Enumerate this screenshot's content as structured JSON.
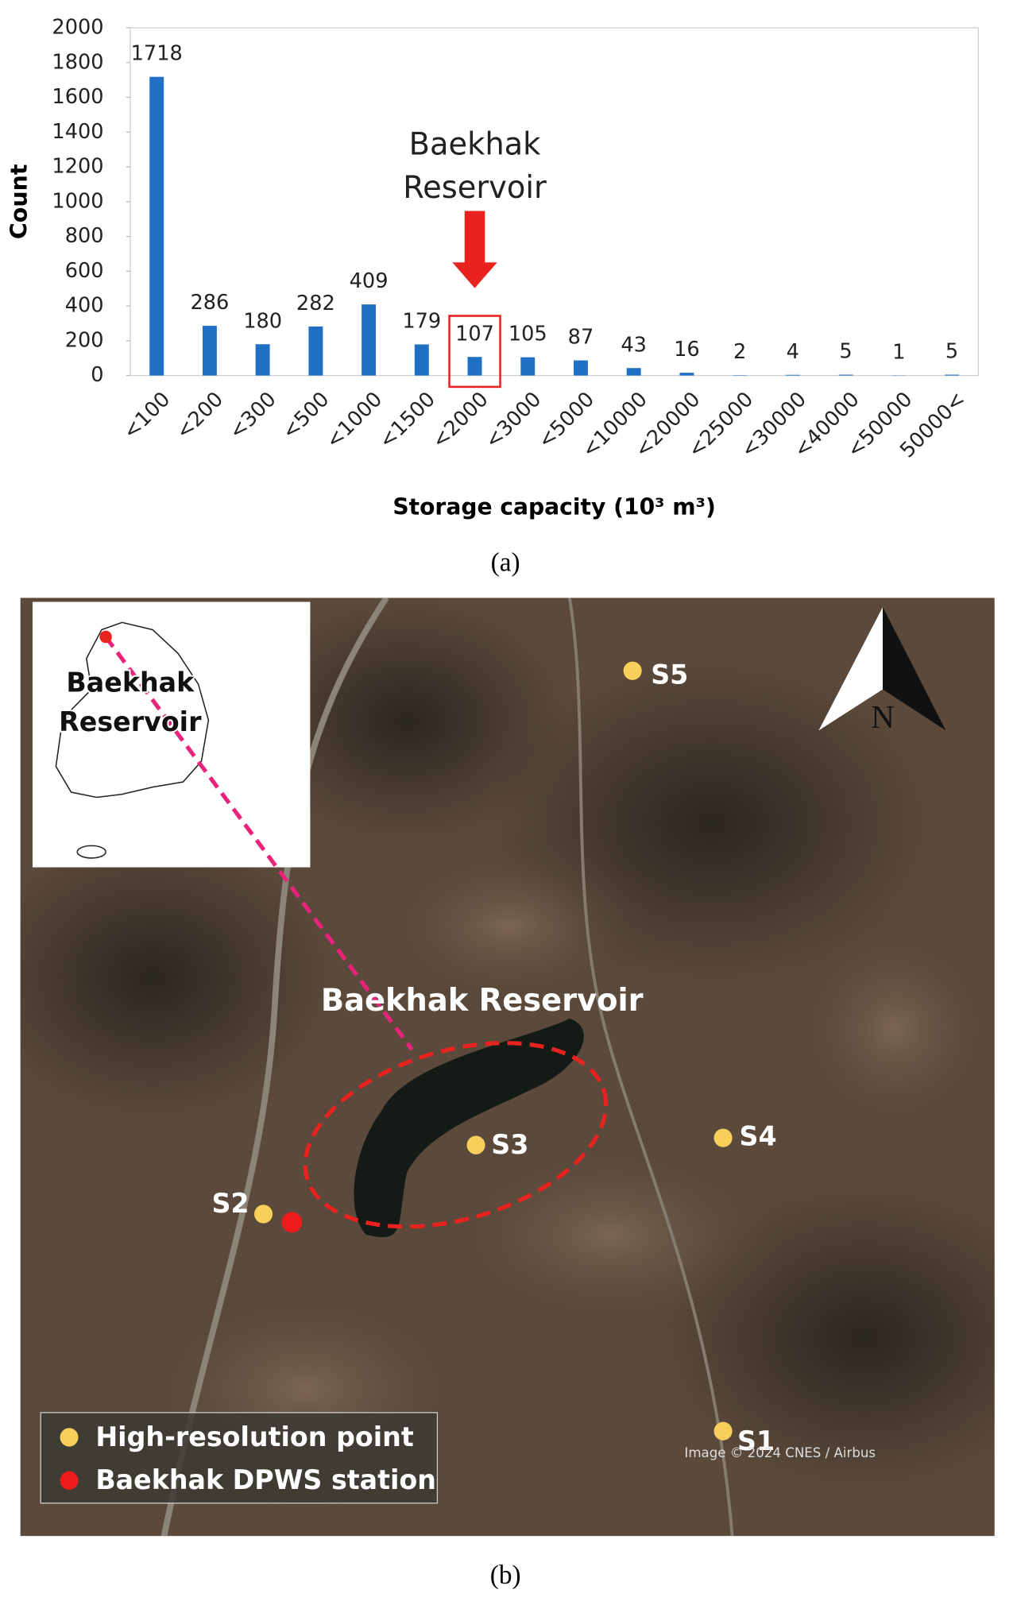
{
  "chart_data": {
    "type": "bar",
    "categories": [
      "<100",
      "<200",
      "<300",
      "<500",
      "<1000",
      "<1500",
      "<2000",
      "<3000",
      "<5000",
      "<10000",
      "<20000",
      "<25000",
      "<30000",
      "<40000",
      "<50000",
      "50000<"
    ],
    "values": [
      1718,
      286,
      180,
      282,
      409,
      179,
      107,
      105,
      87,
      43,
      16,
      2,
      4,
      5,
      1,
      5
    ],
    "color": "#1f6fc5",
    "ylim": [
      0,
      2000
    ],
    "yticks": [
      0,
      200,
      400,
      600,
      800,
      1000,
      1200,
      1400,
      1600,
      1800,
      2000
    ],
    "xlabel": "Storage capacity (10³ m³)",
    "ylabel": "Count",
    "annotation": {
      "lines": [
        "Baekhak",
        "Reservoir"
      ],
      "category_index": 6,
      "color": "#e8231f"
    },
    "panel_label": "(a)"
  },
  "map": {
    "panel_label": "(b)",
    "title": "Baekhak Reservoir",
    "inset_label": [
      "Baekhak",
      "Reservoir"
    ],
    "north": "N",
    "points": [
      "S1",
      "S2",
      "S3",
      "S4",
      "S5"
    ],
    "legend": [
      "High-resolution point",
      "Baekhak DPWS station"
    ],
    "credit": "Image © 2024 CNES / Airbus"
  }
}
